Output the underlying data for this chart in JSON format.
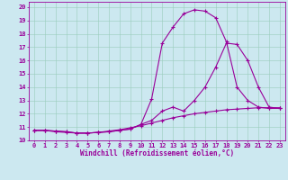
{
  "xlabel": "Windchill (Refroidissement éolien,°C)",
  "bg_color": "#cce8f0",
  "line_color": "#990099",
  "xlim": [
    -0.5,
    23.5
  ],
  "ylim": [
    10,
    20.4
  ],
  "xticks": [
    0,
    1,
    2,
    3,
    4,
    5,
    6,
    7,
    8,
    9,
    10,
    11,
    12,
    13,
    14,
    15,
    16,
    17,
    18,
    19,
    20,
    21,
    22,
    23
  ],
  "yticks": [
    10,
    11,
    12,
    13,
    14,
    15,
    16,
    17,
    18,
    19,
    20
  ],
  "curve1_x": [
    0,
    1,
    2,
    3,
    4,
    5,
    6,
    7,
    8,
    9,
    10,
    11,
    12,
    13,
    14,
    15,
    16,
    17,
    18,
    19,
    20,
    21,
    22,
    23
  ],
  "curve1_y": [
    10.75,
    10.75,
    10.7,
    10.65,
    10.55,
    10.55,
    10.6,
    10.65,
    10.75,
    10.85,
    11.2,
    13.1,
    17.3,
    18.5,
    19.5,
    19.8,
    19.7,
    19.2,
    17.4,
    14.0,
    13.0,
    12.5,
    12.4,
    12.4
  ],
  "curve2_x": [
    0,
    1,
    2,
    3,
    4,
    5,
    6,
    7,
    8,
    9,
    10,
    11,
    12,
    13,
    14,
    15,
    16,
    17,
    18,
    19,
    20,
    21,
    22,
    23
  ],
  "curve2_y": [
    10.75,
    10.75,
    10.7,
    10.65,
    10.55,
    10.55,
    10.6,
    10.65,
    10.75,
    10.85,
    11.2,
    11.5,
    12.2,
    12.5,
    12.2,
    13.0,
    14.0,
    15.5,
    17.3,
    17.2,
    16.0,
    14.0,
    12.5,
    12.4
  ],
  "curve3_x": [
    0,
    1,
    2,
    3,
    4,
    5,
    6,
    7,
    8,
    9,
    10,
    11,
    12,
    13,
    14,
    15,
    16,
    17,
    18,
    19,
    20,
    21,
    22,
    23
  ],
  "curve3_y": [
    10.75,
    10.75,
    10.65,
    10.6,
    10.55,
    10.55,
    10.6,
    10.7,
    10.8,
    10.95,
    11.1,
    11.3,
    11.5,
    11.7,
    11.85,
    12.0,
    12.1,
    12.2,
    12.3,
    12.35,
    12.4,
    12.45,
    12.45,
    12.45
  ],
  "tick_fontsize": 5.0,
  "xlabel_fontsize": 5.5,
  "marker_size": 3,
  "line_width": 0.8
}
